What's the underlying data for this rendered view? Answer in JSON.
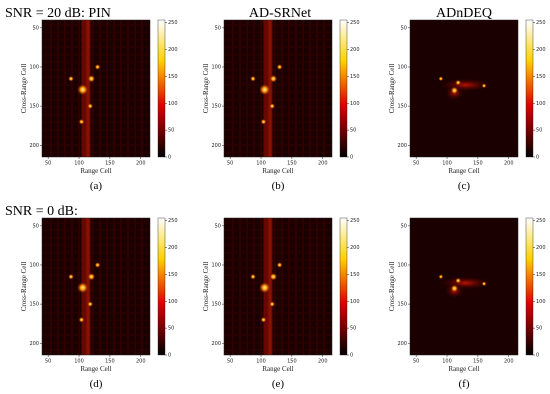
{
  "headings": [
    "SNR = 20 dB: PIN",
    "AD-SRNet",
    "ADnDEQ",
    "SNR = 0 dB:"
  ],
  "axes": {
    "xlabel": "Range Cell",
    "ylabel": "Cross-Range Cell",
    "xlim": [
      40,
      215
    ],
    "ylim": [
      40,
      215
    ],
    "xticks": [
      50,
      100,
      150,
      200
    ],
    "yticks": [
      50,
      100,
      150,
      200
    ],
    "colormap": "hot",
    "clim": [
      0,
      255
    ],
    "cticks": [
      0,
      50,
      100,
      150,
      200,
      250
    ]
  },
  "panels": [
    {
      "caption": "(a)"
    },
    {
      "caption": "(b)"
    },
    {
      "caption": "(c)"
    },
    {
      "caption": "(d)"
    },
    {
      "caption": "(e)"
    },
    {
      "caption": "(f)"
    }
  ]
}
